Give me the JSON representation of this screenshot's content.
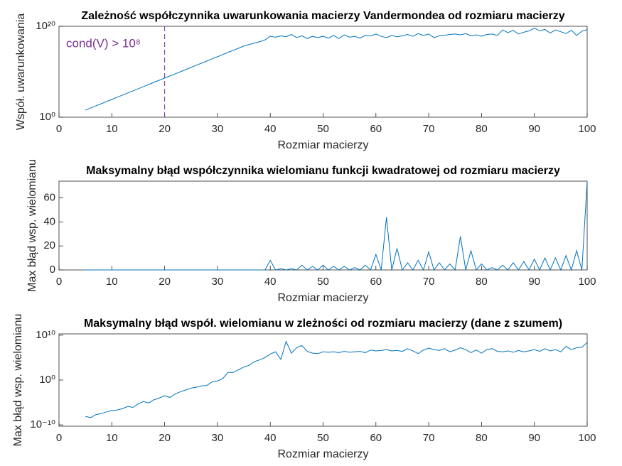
{
  "chart_data": [
    {
      "type": "line",
      "title": "Zależność współczynnika uwarunkowania macierzy Vandermondea od rozmiaru macierzy",
      "xlabel": "Rozmiar macierzy",
      "ylabel": "Współ. uwarunkowania",
      "log_y": true,
      "xlim": [
        0,
        100
      ],
      "xticks": [
        0,
        10,
        20,
        30,
        40,
        50,
        60,
        70,
        80,
        90,
        100
      ],
      "ylim": [
        1,
        1e+20
      ],
      "yticks": [
        {
          "value": 1,
          "label": "10⁰"
        },
        {
          "value": 1e+20,
          "label": "10²⁰"
        }
      ],
      "annotations": [
        {
          "text": "cond(V) > 10⁸",
          "x": 20,
          "color": "#7e2f8e"
        }
      ],
      "series": [
        {
          "color": "#0072bd",
          "x": [
            5,
            6,
            7,
            8,
            9,
            10,
            11,
            12,
            13,
            14,
            15,
            16,
            17,
            18,
            19,
            20,
            21,
            22,
            23,
            24,
            25,
            26,
            27,
            28,
            29,
            30,
            31,
            32,
            33,
            34,
            35,
            36,
            37,
            38,
            39,
            40,
            41,
            42,
            43,
            44,
            45,
            46,
            47,
            48,
            49,
            50,
            51,
            52,
            53,
            54,
            55,
            56,
            57,
            58,
            59,
            60,
            61,
            62,
            63,
            64,
            65,
            66,
            67,
            68,
            69,
            70,
            71,
            72,
            73,
            74,
            75,
            76,
            77,
            78,
            79,
            80,
            81,
            82,
            83,
            84,
            85,
            86,
            87,
            88,
            89,
            90,
            91,
            92,
            93,
            94,
            95,
            96,
            97,
            98,
            99,
            100
          ],
          "values": [
            36.0,
            110.0,
            320.0,
            930.0,
            2800.0,
            8100.0,
            24000.0,
            71000.0,
            210000.0,
            620000.0,
            1800000.0,
            5400000.0,
            16000000.0,
            47000000.0,
            140000000.0,
            410000000.0,
            1200000000.0,
            3500000000.0,
            10000000000.0,
            31000000000.0,
            91000000000.0,
            270000000000.0,
            790000000000.0,
            2300000000000.0,
            6900000000000.0,
            20000000000000.0,
            60000000000000.0,
            180000000000000.0,
            520000000000000.0,
            1500000000000000.0,
            4600000000000000.0,
            1e+16,
            2e+16,
            4e+16,
            1e+17,
            6.3e+17,
            4e+17,
            7.9e+17,
            5e+17,
            1.6e+18,
            3.2e+17,
            7.9e+17,
            2e+17,
            6.3e+17,
            3.2e+17,
            6.3e+17,
            2.5e+17,
            1e+18,
            2e+17,
            1.3e+18,
            4e+17,
            6.3e+17,
            2.5e+17,
            1e+18,
            7.9e+17,
            2e+18,
            6.3e+17,
            3.2e+17,
            1e+18,
            5e+17,
            7.9e+17,
            1.6e+18,
            6.3e+17,
            2.5e+18,
            1e+18,
            2e+18,
            3.2e+17,
            7.9e+17,
            1e+18,
            1.6e+18,
            2e+18,
            1.3e+18,
            2.5e+18,
            7.9e+17,
            1.3e+18,
            6.3e+17,
            1.6e+18,
            2e+18,
            1e+18,
            1.6e+19,
            4e+18,
            1.3e+19,
            2e+18,
            5e+18,
            1e+19,
            4e+19,
            1e+19,
            2e+19,
            3.2e+18,
            1.6e+19,
            6.3e+18,
            2.5e+18,
            1.3e+19,
            1e+18,
            7.9e+18,
            2e+19
          ]
        }
      ]
    },
    {
      "type": "line",
      "title": "Maksymalny błąd współczynnika wielomianu funkcji kwadratowej od rozmiaru macierzy",
      "xlabel": "Rozmiar macierzy",
      "ylabel": "Max błąd wsp. wielomianu",
      "log_y": false,
      "xlim": [
        0,
        100
      ],
      "xticks": [
        0,
        10,
        20,
        30,
        40,
        50,
        60,
        70,
        80,
        90,
        100
      ],
      "ylim": [
        0,
        74
      ],
      "yticks": [
        0,
        20,
        40,
        60
      ],
      "series": [
        {
          "color": "#0072bd",
          "x": [
            5,
            6,
            7,
            8,
            9,
            10,
            11,
            12,
            13,
            14,
            15,
            16,
            17,
            18,
            19,
            20,
            21,
            22,
            23,
            24,
            25,
            26,
            27,
            28,
            29,
            30,
            31,
            32,
            33,
            34,
            35,
            36,
            37,
            38,
            39,
            40,
            41,
            42,
            43,
            44,
            45,
            46,
            47,
            48,
            49,
            50,
            51,
            52,
            53,
            54,
            55,
            56,
            57,
            58,
            59,
            60,
            61,
            62,
            63,
            64,
            65,
            66,
            67,
            68,
            69,
            70,
            71,
            72,
            73,
            74,
            75,
            76,
            77,
            78,
            79,
            80,
            81,
            82,
            83,
            84,
            85,
            86,
            87,
            88,
            89,
            90,
            91,
            92,
            93,
            94,
            95,
            96,
            97,
            98,
            99,
            100
          ],
          "values": [
            0,
            0,
            0,
            0,
            0,
            0,
            0,
            0,
            0,
            0,
            0,
            0,
            0,
            0,
            0,
            0,
            0,
            0,
            0,
            0,
            0,
            0,
            0,
            0,
            0,
            0,
            0,
            0,
            0,
            0,
            0,
            0,
            0,
            0,
            0,
            8,
            0,
            1,
            0,
            1,
            0,
            4,
            0,
            3,
            0,
            4,
            0,
            3,
            0,
            3,
            0,
            2,
            0,
            4,
            0,
            13,
            0,
            44,
            0,
            18,
            0,
            6,
            0,
            8,
            0,
            15,
            0,
            6,
            0,
            5,
            0,
            28,
            0,
            16,
            0,
            5,
            0,
            2,
            0,
            4,
            0,
            6,
            0,
            7,
            0,
            9,
            0,
            10,
            0,
            10,
            0,
            12,
            0,
            16,
            0,
            74
          ]
        }
      ]
    },
    {
      "type": "line",
      "title": "Maksymalny błąd współ. wielomianu w zleżności od rozmiaru macierzy (dane z szumem)",
      "xlabel": "Rozmiar macierzy",
      "ylabel": "Max błąd wsp. wielomianu",
      "log_y": true,
      "xlim": [
        0,
        100
      ],
      "xticks": [
        0,
        10,
        20,
        30,
        40,
        50,
        60,
        70,
        80,
        90,
        100
      ],
      "ylim": [
        5e-11,
        20000000000.0
      ],
      "yticks": [
        {
          "value": 1e-10,
          "label": "10⁻¹⁰"
        },
        {
          "value": 1,
          "label": "10⁰"
        },
        {
          "value": 10000000000.0,
          "label": "10¹⁰"
        }
      ],
      "series": [
        {
          "color": "#0072bd",
          "x": [
            5,
            6,
            7,
            8,
            9,
            10,
            11,
            12,
            13,
            14,
            15,
            16,
            17,
            18,
            19,
            20,
            21,
            22,
            23,
            24,
            25,
            26,
            27,
            28,
            29,
            30,
            31,
            32,
            33,
            34,
            35,
            36,
            37,
            38,
            39,
            40,
            41,
            42,
            43,
            44,
            45,
            46,
            47,
            48,
            49,
            50,
            51,
            52,
            53,
            54,
            55,
            56,
            57,
            58,
            59,
            60,
            61,
            62,
            63,
            64,
            65,
            66,
            67,
            68,
            69,
            70,
            71,
            72,
            73,
            74,
            75,
            76,
            77,
            78,
            79,
            80,
            81,
            82,
            83,
            84,
            85,
            86,
            87,
            88,
            89,
            90,
            91,
            92,
            93,
            94,
            95,
            96,
            97,
            98,
            99,
            100
          ],
          "values": [
            7.9e-09,
            4e-09,
            2e-08,
            3.2e-08,
            7.9e-08,
            1.6e-07,
            2e-07,
            4e-07,
            1.3e-06,
            7.9e-07,
            5e-06,
            1.6e-05,
            7.9e-06,
            4e-05,
            0.0001,
            0.00032,
            0.00013,
            0.00079,
            0.0025,
            0.0063,
            0.016,
            0.025,
            0.05,
            0.063,
            0.4,
            0.63,
            2,
            50,
            50,
            200,
            790,
            2000,
            13000.0,
            32000.0,
            100000.0,
            630000.0,
            2000000.0,
            40000.0,
            400000000.0,
            1000000.0,
            16000000.0,
            50000000.0,
            2500000.0,
            1000000.0,
            790000.0,
            2000000.0,
            1600000.0,
            2000000.0,
            1300000.0,
            2500000.0,
            1600000.0,
            2000000.0,
            2500000.0,
            1300000.0,
            5000000.0,
            3200000.0,
            4000000.0,
            6300000.0,
            3200000.0,
            4000000.0,
            2500000.0,
            10000000.0,
            3200000.0,
            790000.0,
            5000000.0,
            13000000.0,
            6300000.0,
            4000000.0,
            10000000.0,
            2000000.0,
            5000000.0,
            16000000.0,
            6300000.0,
            1300000.0,
            5000000.0,
            1000000.0,
            6300000.0,
            10000000.0,
            2500000.0,
            2000000.0,
            3200000.0,
            1600000.0,
            4000000.0,
            2000000.0,
            3200000.0,
            6300000.0,
            2500000.0,
            10000000.0,
            3200000.0,
            6300000.0,
            2000000.0,
            32000000.0,
            6300000.0,
            16000000.0,
            20000000.0,
            250000000.0
          ]
        }
      ]
    }
  ]
}
